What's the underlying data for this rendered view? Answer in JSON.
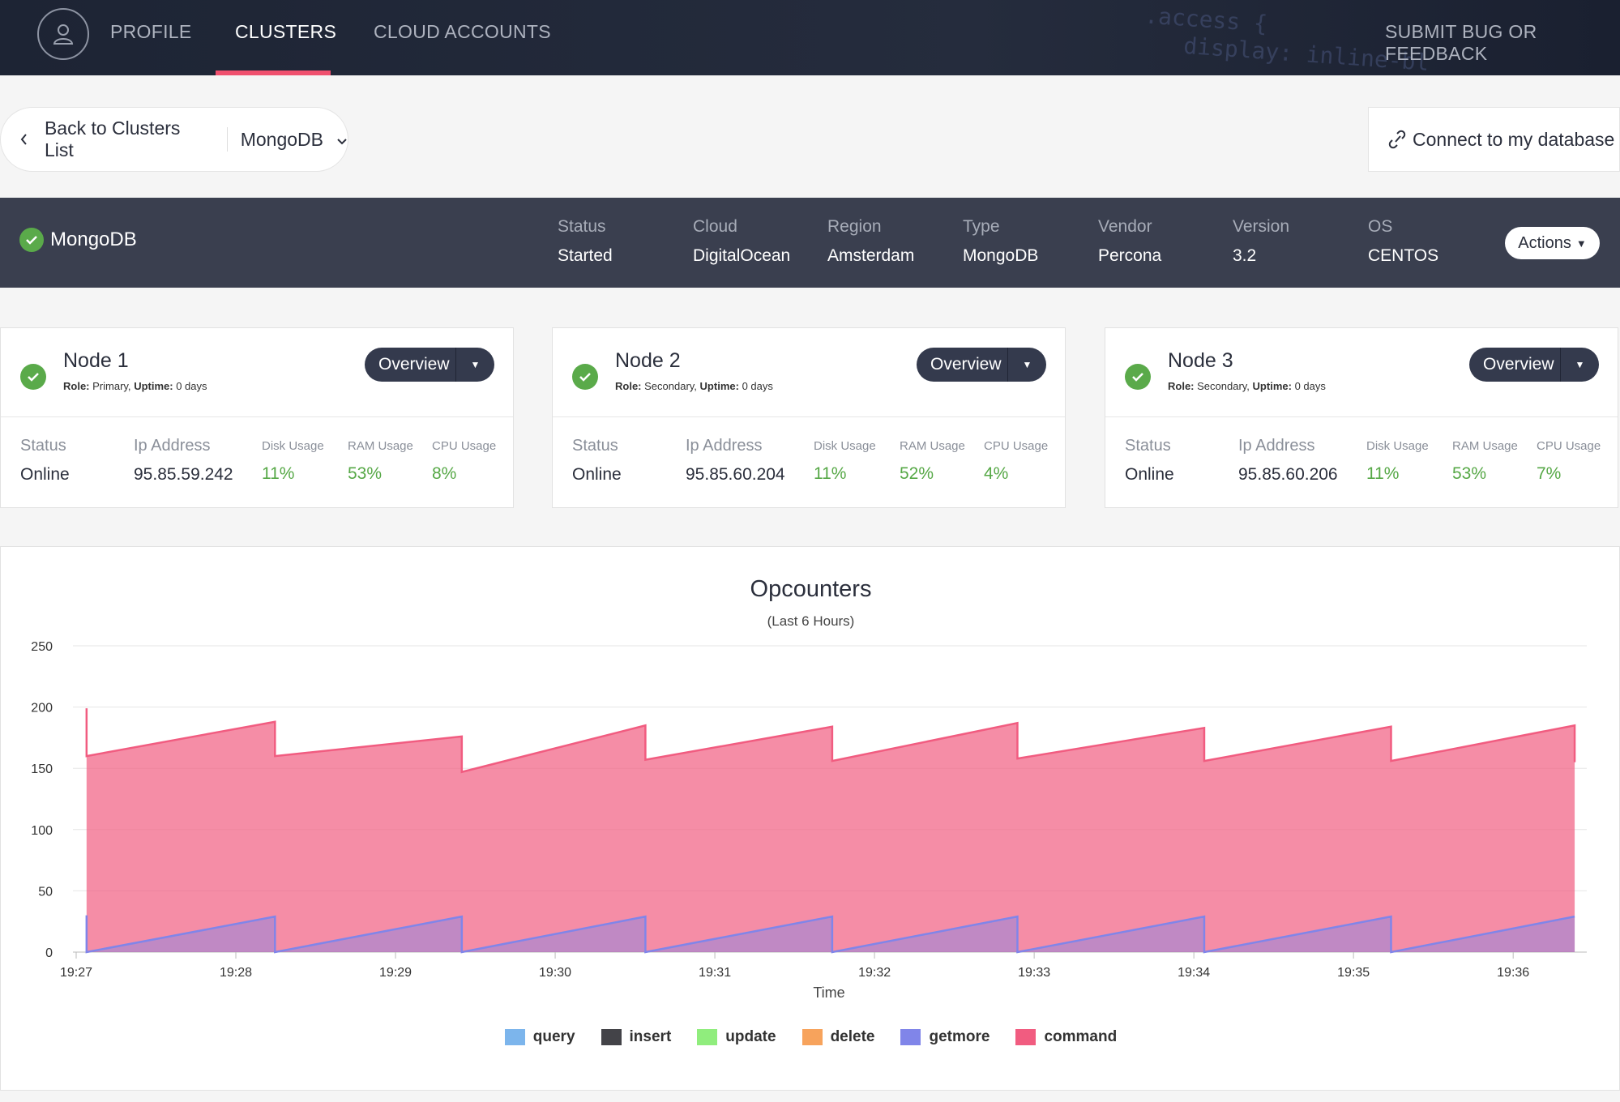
{
  "nav": {
    "profile": "PROFILE",
    "clusters": "CLUSTERS",
    "cloud_accounts": "CLOUD ACCOUNTS",
    "feedback": "SUBMIT BUG OR FEEDBACK",
    "active": "clusters"
  },
  "backbar": {
    "back_label": "Back to Clusters List",
    "cluster_select": "MongoDB"
  },
  "connect_label": "Connect to my database",
  "cluster": {
    "name": "MongoDB",
    "status_ok": true,
    "meta": [
      {
        "key": "Status",
        "value": "Started"
      },
      {
        "key": "Cloud",
        "value": "DigitalOcean"
      },
      {
        "key": "Region",
        "value": "Amsterdam"
      },
      {
        "key": "Type",
        "value": "MongoDB"
      },
      {
        "key": "Vendor",
        "value": "Percona"
      },
      {
        "key": "Version",
        "value": "3.2"
      },
      {
        "key": "OS",
        "value": "CENTOS"
      }
    ],
    "actions_label": "Actions"
  },
  "stat_labels": {
    "status": "Status",
    "ip": "Ip Address",
    "disk": "Disk Usage",
    "ram": "RAM Usage",
    "cpu": "CPU Usage",
    "role": "Role:",
    "uptime": "Uptime:",
    "overview": "Overview"
  },
  "nodes": [
    {
      "title": "Node 1",
      "role": "Primary,",
      "uptime": "0 days",
      "status": "Online",
      "ip": "95.85.59.242",
      "disk": "11%",
      "ram": "53%",
      "cpu": "8%"
    },
    {
      "title": "Node 2",
      "role": "Secondary,",
      "uptime": "0 days",
      "status": "Online",
      "ip": "95.85.60.204",
      "disk": "11%",
      "ram": "52%",
      "cpu": "4%"
    },
    {
      "title": "Node 3",
      "role": "Secondary,",
      "uptime": "0 days",
      "status": "Online",
      "ip": "95.85.60.206",
      "disk": "11%",
      "ram": "53%",
      "cpu": "7%"
    }
  ],
  "colors": {
    "accent": "#f0506e",
    "ok": "#5aaa4a",
    "usage_green": "#56a846",
    "query": "#7cb5ec",
    "insert": "#434348",
    "update": "#90ed7d",
    "delete": "#f7a35c",
    "getmore": "#8085e9",
    "command": "#f15c80"
  },
  "chart_data": {
    "type": "area",
    "title": "Opcounters",
    "subtitle": "(Last 6 Hours)",
    "xlabel": "Time",
    "ylabel": "",
    "ylim": [
      0,
      250
    ],
    "yticks": [
      0,
      50,
      100,
      150,
      200,
      250
    ],
    "xticks": [
      "19:27",
      "19:28",
      "19:29",
      "19:30",
      "19:31",
      "19:32",
      "19:33",
      "19:34",
      "19:35",
      "19:36"
    ],
    "xlim_minutes": [
      0,
      9.4
    ],
    "grid": true,
    "legend_position": "bottom",
    "series": [
      {
        "name": "query",
        "color": "#7cb5ec",
        "x": [],
        "values": []
      },
      {
        "name": "insert",
        "color": "#434348",
        "x": [],
        "values": []
      },
      {
        "name": "update",
        "color": "#90ed7d",
        "x": [],
        "values": []
      },
      {
        "name": "delete",
        "color": "#f7a35c",
        "x": [],
        "values": []
      },
      {
        "name": "getmore",
        "color": "#8085e9",
        "x": [
          0.06,
          0.06,
          1.24,
          1.24,
          2.41,
          2.41,
          3.56,
          3.56,
          4.73,
          4.73,
          5.89,
          5.89,
          7.06,
          7.06,
          8.23,
          8.23,
          9.38
        ],
        "values": [
          30,
          0,
          29,
          0,
          29,
          0,
          29,
          0,
          29,
          0,
          29,
          0,
          29,
          0,
          29,
          0,
          29
        ]
      },
      {
        "name": "command",
        "color": "#f15c80",
        "x": [
          0.06,
          0.06,
          1.24,
          1.24,
          2.41,
          2.41,
          3.56,
          3.56,
          4.73,
          4.73,
          5.89,
          5.89,
          7.06,
          7.06,
          8.23,
          8.23,
          9.38,
          9.38
        ],
        "values": [
          199,
          160,
          188,
          160,
          176,
          147,
          185,
          157,
          184,
          156,
          187,
          158,
          183,
          156,
          184,
          156,
          185,
          155
        ]
      }
    ]
  }
}
